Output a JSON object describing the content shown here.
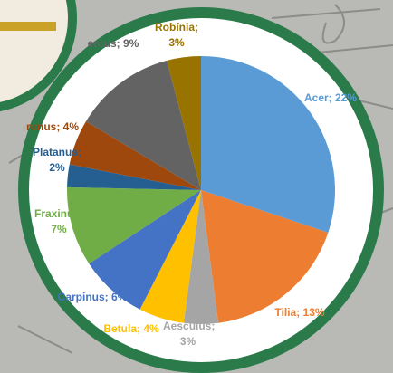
{
  "chart_data": {
    "type": "pie",
    "values": [
      22,
      13,
      3,
      4,
      6,
      7,
      2,
      4,
      9,
      3
    ],
    "value_labels": [
      "Acer; 22%",
      "Tilia; 13%",
      "Aesculus; 3%",
      "Betula; 4%",
      "Carpinus; 6%",
      "Fraxinus; 7%",
      "Platanus; 2%",
      "runus; 4%",
      "ercus; 9%",
      "Robínia; 3%"
    ],
    "colors": [
      "#5b9bd5",
      "#ed7d31",
      "#a5a5a5",
      "#ffc000",
      "#4472c4",
      "#70ad47",
      "#255e91",
      "#9e480e",
      "#636363",
      "#997300"
    ]
  }
}
